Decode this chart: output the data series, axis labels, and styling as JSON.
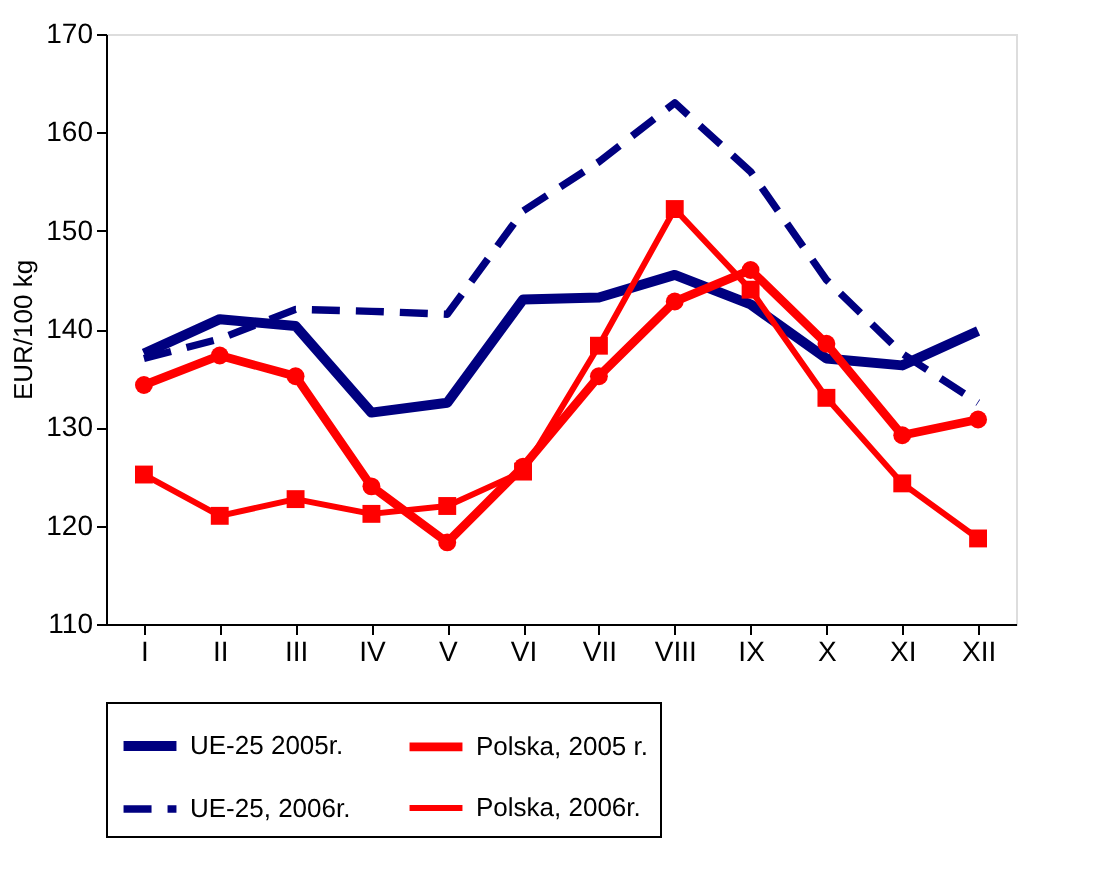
{
  "chart_data": {
    "type": "line",
    "ylabel": "EUR/100 kg",
    "categories": [
      "I",
      "II",
      "III",
      "IV",
      "V",
      "VI",
      "VII",
      "VIII",
      "IX",
      "X",
      "XI",
      "XII"
    ],
    "series": [
      {
        "name": "UE-25 2005r.",
        "color": "#000080",
        "line_style": "solid",
        "marker": "none",
        "values": [
          137.5,
          141,
          140.3,
          131.5,
          132.5,
          143,
          143.2,
          145.5,
          142.5,
          137,
          136.3,
          139.8
        ]
      },
      {
        "name": "Polska, 2005 r.",
        "color": "#ff0000",
        "line_style": "solid",
        "marker": "circle",
        "values": [
          134.3,
          137.3,
          135.2,
          124,
          118.3,
          126,
          135.2,
          142.8,
          146,
          138.5,
          129.2,
          130.8
        ]
      },
      {
        "name": "UE-25, 2006r.",
        "color": "#000080",
        "line_style": "dashed",
        "marker": "none",
        "values": [
          137,
          139,
          142,
          141.8,
          141.5,
          152,
          157,
          163,
          156,
          145,
          137.5,
          132.5
        ]
      },
      {
        "name": "Polska, 2006r.",
        "color": "#ff0000",
        "line_style": "solid",
        "marker": "square",
        "values": [
          125.2,
          121,
          122.7,
          121.2,
          122,
          125.5,
          138.3,
          152.2,
          144,
          133,
          124.3,
          118.7
        ]
      }
    ],
    "ylim": [
      110,
      170
    ],
    "yticks": [
      110,
      120,
      130,
      140,
      150,
      160,
      170
    ],
    "grid": false,
    "legend": "bottom"
  }
}
